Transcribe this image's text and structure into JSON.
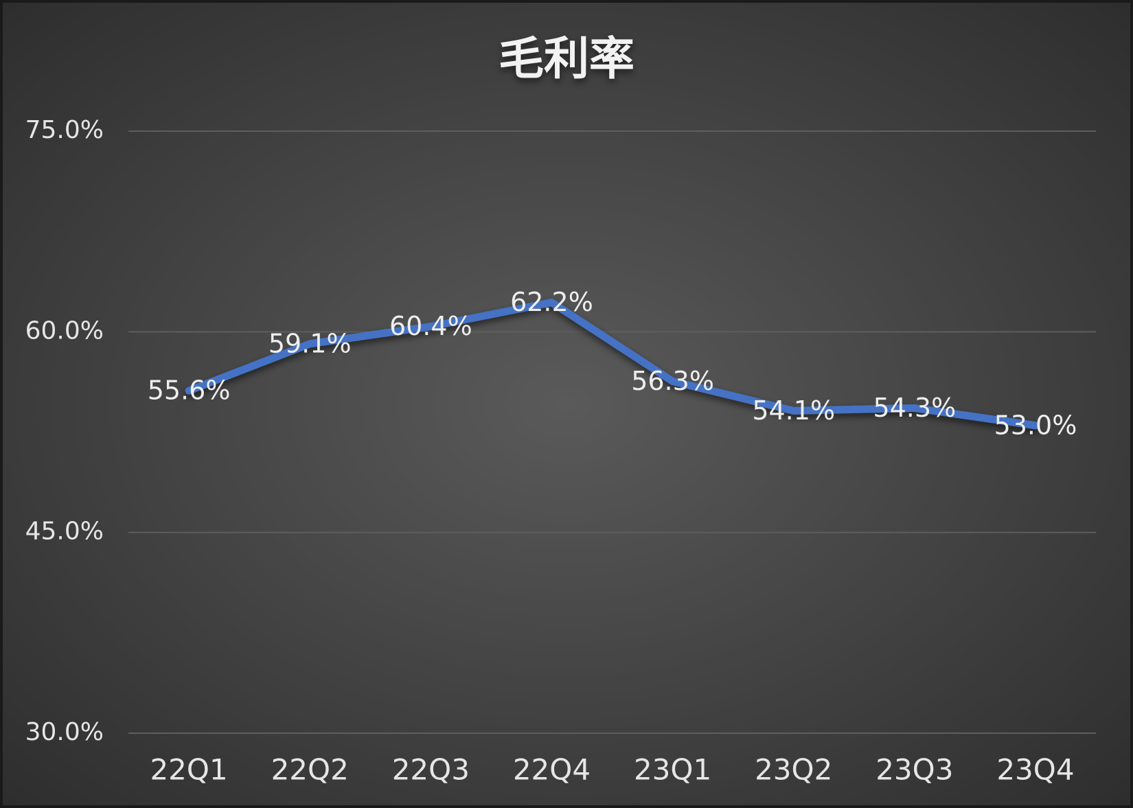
{
  "chart_data": {
    "type": "line",
    "title": "毛利率",
    "categories": [
      "22Q1",
      "22Q2",
      "22Q3",
      "22Q4",
      "23Q1",
      "23Q2",
      "23Q3",
      "23Q4"
    ],
    "values": [
      55.6,
      59.1,
      60.4,
      62.2,
      56.3,
      54.1,
      54.3,
      53.0
    ],
    "value_labels": [
      "55.6%",
      "59.1%",
      "60.4%",
      "62.2%",
      "56.3%",
      "54.1%",
      "54.3%",
      "53.0%"
    ],
    "color": "#4472c4",
    "ylim": [
      30,
      75
    ],
    "yticks": [
      {
        "value": 30,
        "label": "30.0%"
      },
      {
        "value": 45,
        "label": "45.0%"
      },
      {
        "value": 60,
        "label": "60.0%"
      },
      {
        "value": 75,
        "label": "75.0%"
      }
    ],
    "grid": true
  }
}
